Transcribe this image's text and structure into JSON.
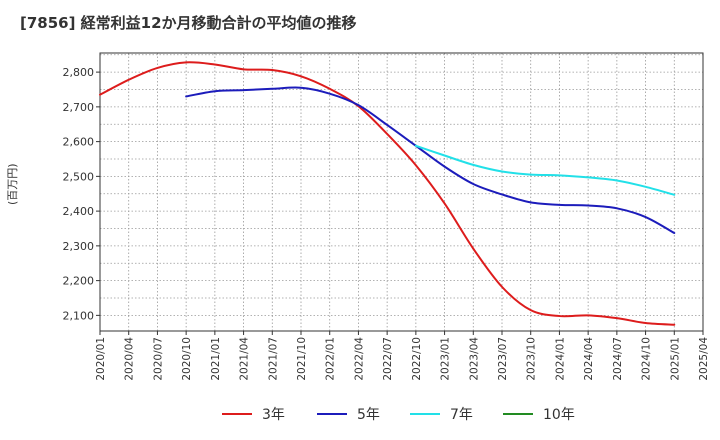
{
  "chart_data": {
    "type": "line",
    "title": "[7856]  経常利益12か月移動合計の平均値の推移",
    "ylabel": "(百万円)",
    "xlabel": "",
    "ylim": [
      2055,
      2855
    ],
    "yticks": [
      2100,
      2200,
      2300,
      2400,
      2500,
      2600,
      2700,
      2800
    ],
    "yticklabels": [
      "2,100",
      "2,200",
      "2,300",
      "2,400",
      "2,500",
      "2,600",
      "2,700",
      "2,800"
    ],
    "xticks": [
      "2020/01",
      "2020/04",
      "2020/07",
      "2020/10",
      "2021/01",
      "2021/04",
      "2021/07",
      "2021/10",
      "2022/01",
      "2022/04",
      "2022/07",
      "2022/10",
      "2023/01",
      "2023/04",
      "2023/07",
      "2023/10",
      "2024/01",
      "2024/04",
      "2024/07",
      "2024/10",
      "2025/01",
      "2025/04"
    ],
    "grid": true,
    "legend_position": "bottom",
    "series": [
      {
        "name": "3年",
        "color": "#dd1c1c",
        "x": [
          "2020/01",
          "2020/04",
          "2020/07",
          "2020/10",
          "2021/01",
          "2021/04",
          "2021/07",
          "2021/10",
          "2022/01",
          "2022/04",
          "2022/07",
          "2022/10",
          "2023/01",
          "2023/04",
          "2023/07",
          "2023/10",
          "2024/01",
          "2024/04",
          "2024/07",
          "2024/10",
          "2025/01"
        ],
        "values": [
          2735,
          2778,
          2812,
          2828,
          2822,
          2808,
          2806,
          2788,
          2752,
          2702,
          2622,
          2532,
          2422,
          2292,
          2182,
          2115,
          2098,
          2100,
          2092,
          2078,
          2073
        ]
      },
      {
        "name": "5年",
        "color": "#1c1cbb",
        "x": [
          "2020/10",
          "2021/01",
          "2021/04",
          "2021/07",
          "2021/10",
          "2022/01",
          "2022/04",
          "2022/07",
          "2022/10",
          "2023/01",
          "2023/04",
          "2023/07",
          "2023/10",
          "2024/01",
          "2024/04",
          "2024/07",
          "2024/10",
          "2025/01"
        ],
        "values": [
          2730,
          2745,
          2748,
          2752,
          2755,
          2738,
          2705,
          2648,
          2588,
          2528,
          2478,
          2448,
          2425,
          2418,
          2416,
          2408,
          2383,
          2337
        ]
      },
      {
        "name": "7年",
        "color": "#22e0e8",
        "x": [
          "2022/10",
          "2023/01",
          "2023/04",
          "2023/07",
          "2023/10",
          "2024/01",
          "2024/04",
          "2024/07",
          "2024/10",
          "2025/01"
        ],
        "values": [
          2588,
          2560,
          2533,
          2514,
          2505,
          2503,
          2497,
          2488,
          2470,
          2447
        ]
      },
      {
        "name": "10年",
        "color": "#228b22",
        "x": [],
        "values": []
      }
    ]
  }
}
